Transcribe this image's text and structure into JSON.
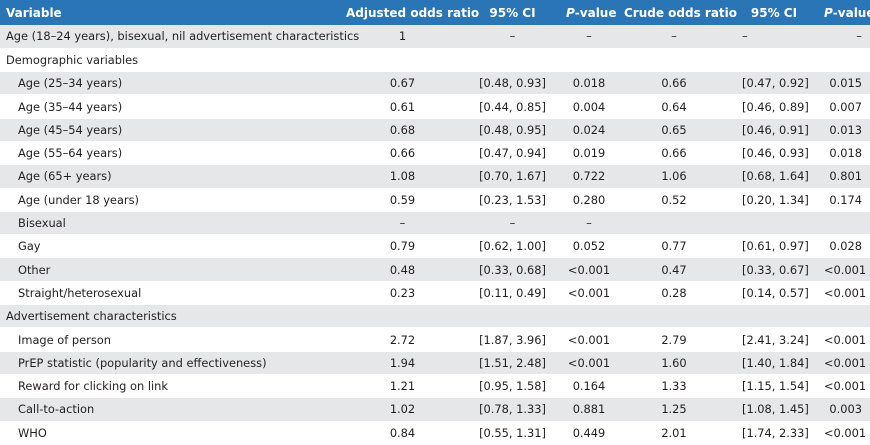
{
  "header": {
    "variable": "Variable",
    "adj_or": "Adjusted odds ratio",
    "ci1": "95% CI",
    "p1_italic": "P",
    "p1_rest": "-value",
    "crude_or": "Crude odds ratio",
    "ci2": "95% CI",
    "p2_italic": "P",
    "p2_rest": "-value"
  },
  "rows": [
    {
      "variable": "Age (18–24 years), bisexual, nil advertisement characteristics",
      "indent": false,
      "aor": "1",
      "ci1": "–",
      "p1": "–",
      "cor": "–",
      "ci2": "–",
      "p2": "–"
    },
    {
      "variable": "Demographic variables",
      "indent": false,
      "aor": "",
      "ci1": "",
      "p1": "",
      "cor": "",
      "ci2": "",
      "p2": ""
    },
    {
      "variable": "Age (25–34 years)",
      "indent": true,
      "aor": "0.67",
      "ci1": "[0.48, 0.93]",
      "p1": "0.018",
      "cor": "0.66",
      "ci2": "[0.47, 0.92]",
      "p2": "0.015"
    },
    {
      "variable": "Age (35–44 years)",
      "indent": true,
      "aor": "0.61",
      "ci1": "[0.44, 0.85]",
      "p1": "0.004",
      "cor": "0.64",
      "ci2": "[0.46, 0.89]",
      "p2": "0.007"
    },
    {
      "variable": "Age (45–54 years)",
      "indent": true,
      "aor": "0.68",
      "ci1": "[0.48, 0.95]",
      "p1": "0.024",
      "cor": "0.65",
      "ci2": "[0.46, 0.91]",
      "p2": "0.013"
    },
    {
      "variable": "Age (55–64 years)",
      "indent": true,
      "aor": "0.66",
      "ci1": "[0.47, 0.94]",
      "p1": "0.019",
      "cor": "0.66",
      "ci2": "[0.46, 0.93]",
      "p2": "0.018"
    },
    {
      "variable": "Age (65+ years)",
      "indent": true,
      "aor": "1.08",
      "ci1": "[0.70, 1.67]",
      "p1": "0.722",
      "cor": "1.06",
      "ci2": "[0.68, 1.64]",
      "p2": "0.801"
    },
    {
      "variable": "Age (under 18 years)",
      "indent": true,
      "aor": "0.59",
      "ci1": "[0.23, 1.53]",
      "p1": "0.280",
      "cor": "0.52",
      "ci2": "[0.20, 1.34]",
      "p2": "0.174"
    },
    {
      "variable": "Bisexual",
      "indent": true,
      "aor": "–",
      "ci1": "–",
      "p1": "–",
      "cor": "",
      "ci2": "",
      "p2": ""
    },
    {
      "variable": "Gay",
      "indent": true,
      "aor": "0.79",
      "ci1": "[0.62, 1.00]",
      "p1": "0.052",
      "cor": "0.77",
      "ci2": "[0.61, 0.97]",
      "p2": "0.028"
    },
    {
      "variable": "Other",
      "indent": true,
      "aor": "0.48",
      "ci1": "[0.33, 0.68]",
      "p1": "<0.001",
      "cor": "0.47",
      "ci2": "[0.33, 0.67]",
      "p2": "<0.001"
    },
    {
      "variable": "Straight/heterosexual",
      "indent": true,
      "aor": "0.23",
      "ci1": "[0.11, 0.49]",
      "p1": "<0.001",
      "cor": "0.28",
      "ci2": "[0.14, 0.57]",
      "p2": "<0.001"
    },
    {
      "variable": "Advertisement characteristics",
      "indent": false,
      "aor": "",
      "ci1": "",
      "p1": "",
      "cor": "",
      "ci2": "",
      "p2": ""
    },
    {
      "variable": "Image of person",
      "indent": true,
      "aor": "2.72",
      "ci1": "[1.87, 3.96]",
      "p1": "<0.001",
      "cor": "2.79",
      "ci2": "[2.41, 3.24]",
      "p2": "<0.001"
    },
    {
      "variable": "PrEP statistic (popularity and effectiveness)",
      "indent": true,
      "aor": "1.94",
      "ci1": "[1.51, 2.48]",
      "p1": "<0.001",
      "cor": "1.60",
      "ci2": "[1.40, 1.84]",
      "p2": "<0.001"
    },
    {
      "variable": "Reward for clicking on link",
      "indent": true,
      "aor": "1.21",
      "ci1": "[0.95, 1.58]",
      "p1": "0.164",
      "cor": "1.33",
      "ci2": "[1.15, 1.54]",
      "p2": "<0.001"
    },
    {
      "variable": "Call-to-action",
      "indent": true,
      "aor": "1.02",
      "ci1": "[0.78, 1.33]",
      "p1": "0.881",
      "cor": "1.25",
      "ci2": "[1.08, 1.45]",
      "p2": "0.003"
    },
    {
      "variable": "WHO",
      "indent": true,
      "aor": "0.84",
      "ci1": "[0.55, 1.31]",
      "p1": "0.449",
      "cor": "2.01",
      "ci2": "[1.74, 2.33]",
      "p2": "<0.001"
    }
  ],
  "colors": {
    "header_bg": "#2a75b6",
    "header_text": "#ffffff",
    "stripe": "#e6e7e8",
    "body_text": "#231f20"
  }
}
